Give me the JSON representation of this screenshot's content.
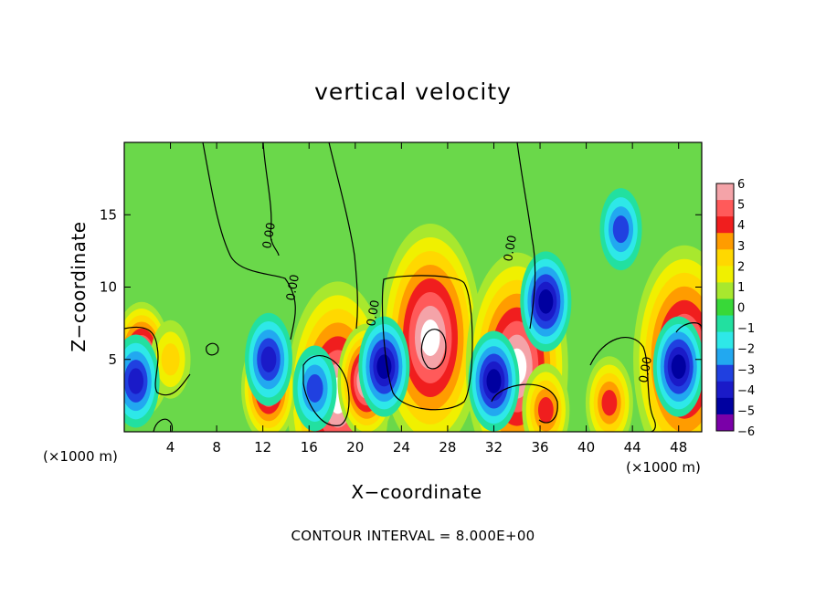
{
  "chart_data": {
    "type": "heatmap",
    "title": "vertical velocity",
    "xlabel": "X−coordinate",
    "ylabel": "Z−coordinate",
    "x_unit": "(×1000 m)",
    "xlim": [
      0,
      50
    ],
    "ylim": [
      0,
      20
    ],
    "x_ticks": [
      4,
      8,
      12,
      16,
      20,
      24,
      28,
      32,
      36,
      40,
      44,
      48
    ],
    "y_ticks": [
      5,
      10,
      15
    ],
    "colorbar": {
      "levels": [
        6,
        5,
        4,
        3,
        2,
        1,
        0,
        -1,
        -2,
        -3,
        -4,
        -5,
        -6
      ],
      "colors": [
        "#f4a3a8",
        "#ff5a5a",
        "#f01e1e",
        "#ff9c00",
        "#ffd800",
        "#f0f000",
        "#a8e82e",
        "#38d838",
        "#22e0a0",
        "#2ee8e8",
        "#22a8f0",
        "#2040e0",
        "#1a1ac8",
        "#0000a0",
        "#7a00a8"
      ]
    },
    "contour_label": "0.00",
    "contour_interval": "CONTOUR INTERVAL = 8.000E+00",
    "features": [
      {
        "x": 26.5,
        "z": 6.5,
        "w": 17,
        "kind": "updraft core"
      },
      {
        "x": 18.5,
        "z": 2.5,
        "w": 9,
        "kind": "updraft"
      },
      {
        "x": 21.0,
        "z": 3.5,
        "w": 7,
        "kind": "updraft"
      },
      {
        "x": 34.0,
        "z": 4.5,
        "w": 8,
        "kind": "updraft"
      },
      {
        "x": 36.5,
        "z": 1.5,
        "w": 4,
        "kind": "updraft"
      },
      {
        "x": 42.0,
        "z": 2.0,
        "w": 4,
        "kind": "updraft"
      },
      {
        "x": 48.5,
        "z": 5.0,
        "w": 8,
        "kind": "updraft"
      },
      {
        "x": 1.5,
        "z": 5.0,
        "w": 7,
        "kind": "updraft"
      },
      {
        "x": 12.5,
        "z": 3.0,
        "w": 6,
        "kind": "updraft"
      },
      {
        "x": 4.0,
        "z": 5.0,
        "w": 2,
        "kind": "updraft"
      },
      {
        "x": 22.5,
        "z": 4.5,
        "w": -5,
        "kind": "downdraft"
      },
      {
        "x": 32.0,
        "z": 3.5,
        "w": -5,
        "kind": "downdraft"
      },
      {
        "x": 36.5,
        "z": 9.0,
        "w": -5,
        "kind": "downdraft"
      },
      {
        "x": 48.0,
        "z": 4.5,
        "w": -5,
        "kind": "downdraft"
      },
      {
        "x": 12.5,
        "z": 5.0,
        "w": -4,
        "kind": "downdraft"
      },
      {
        "x": 1.0,
        "z": 3.5,
        "w": -4,
        "kind": "downdraft"
      },
      {
        "x": 16.5,
        "z": 3.0,
        "w": -3,
        "kind": "downdraft"
      },
      {
        "x": 43.0,
        "z": 14.0,
        "w": -2.5,
        "kind": "downdraft"
      }
    ]
  }
}
